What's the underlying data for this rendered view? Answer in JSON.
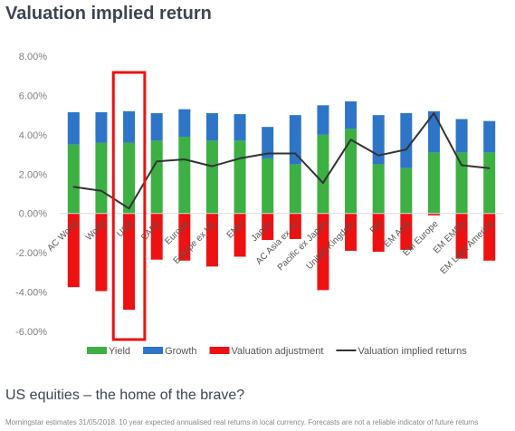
{
  "page": {
    "title": "Valuation implied return",
    "caption": "US equities – the home of the brave?",
    "footnote": "Morningstar estimates 31/05/2018. 10 year expected annualised real returns in local currency. Forecasts are not a reliable indicator of future returns"
  },
  "chart_data": {
    "type": "bar",
    "stacked": true,
    "categories": [
      "AC World",
      "World",
      "USA",
      "EAFE",
      "Europe",
      "Europe ex UK",
      "EMU",
      "Japan",
      "AC Asia ex JP",
      "Pacific ex Japan",
      "United Kingdom",
      "EM",
      "EM Asia",
      "EM Europe",
      "EM EMEA",
      "EM Latin America"
    ],
    "series": [
      {
        "name": "Yield",
        "type": "bar",
        "color": "#3cb043",
        "values": [
          3.5,
          3.6,
          3.6,
          3.7,
          3.9,
          3.7,
          3.7,
          2.8,
          2.5,
          4.0,
          4.3,
          2.5,
          2.3,
          3.1,
          3.1,
          3.1
        ]
      },
      {
        "name": "Growth",
        "type": "bar",
        "color": "#2e75c8",
        "values": [
          1.65,
          1.55,
          1.6,
          1.4,
          1.4,
          1.4,
          1.35,
          1.6,
          2.5,
          1.5,
          1.4,
          2.5,
          2.8,
          2.1,
          1.7,
          1.6
        ]
      },
      {
        "name": "Valuation adjustment",
        "type": "bar",
        "color": "#ee1111",
        "values": [
          -3.75,
          -3.95,
          -4.9,
          -2.35,
          -2.4,
          -2.7,
          -2.2,
          -1.35,
          -1.3,
          -3.9,
          -1.9,
          -1.95,
          -1.85,
          -0.1,
          -2.3,
          -2.4
        ]
      },
      {
        "name": "Valuation implied returns",
        "type": "line",
        "color": "#333333",
        "values": [
          1.35,
          1.15,
          0.25,
          2.65,
          2.75,
          2.4,
          2.8,
          3.05,
          3.05,
          1.55,
          3.75,
          2.95,
          3.25,
          5.1,
          2.45,
          2.3
        ]
      }
    ],
    "y_ticks": [
      "8.00%",
      "6.00%",
      "4.00%",
      "2.00%",
      "0.00%",
      "-2.00%",
      "-4.00%",
      "-6.00%"
    ],
    "ylim": [
      -6,
      8
    ],
    "grid": false,
    "legend_position": "bottom",
    "highlight": {
      "category": "USA",
      "color": "#ee1111"
    }
  }
}
